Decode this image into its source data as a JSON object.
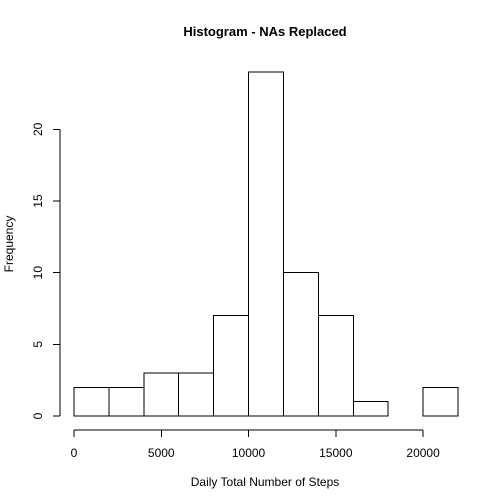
{
  "chart_data": {
    "type": "bar",
    "title": "Histogram - NAs Replaced",
    "xlabel": "Daily Total Number of Steps",
    "ylabel": "Frequency",
    "bins": [
      {
        "start": 0,
        "end": 2000,
        "count": 2
      },
      {
        "start": 2000,
        "end": 4000,
        "count": 2
      },
      {
        "start": 4000,
        "end": 6000,
        "count": 3
      },
      {
        "start": 6000,
        "end": 8000,
        "count": 3
      },
      {
        "start": 8000,
        "end": 10000,
        "count": 7
      },
      {
        "start": 10000,
        "end": 12000,
        "count": 24
      },
      {
        "start": 12000,
        "end": 14000,
        "count": 10
      },
      {
        "start": 14000,
        "end": 16000,
        "count": 7
      },
      {
        "start": 16000,
        "end": 18000,
        "count": 1
      },
      {
        "start": 18000,
        "end": 20000,
        "count": 0
      },
      {
        "start": 20000,
        "end": 22000,
        "count": 2
      }
    ],
    "xlim": [
      0,
      22000
    ],
    "ylim": [
      0,
      24
    ],
    "x_ticks": [
      0,
      5000,
      10000,
      15000,
      20000
    ],
    "x_tick_labels": [
      "0",
      "5000",
      "10000",
      "15000",
      "20000"
    ],
    "y_ticks": [
      0,
      5,
      10,
      15,
      20
    ],
    "y_tick_labels": [
      "0",
      "5",
      "10",
      "15",
      "20"
    ],
    "grid": false,
    "legend": "none",
    "colors": {
      "bar_fill": "#ffffff",
      "bar_stroke": "#000000",
      "axis": "#000000",
      "text": "#000000"
    }
  }
}
